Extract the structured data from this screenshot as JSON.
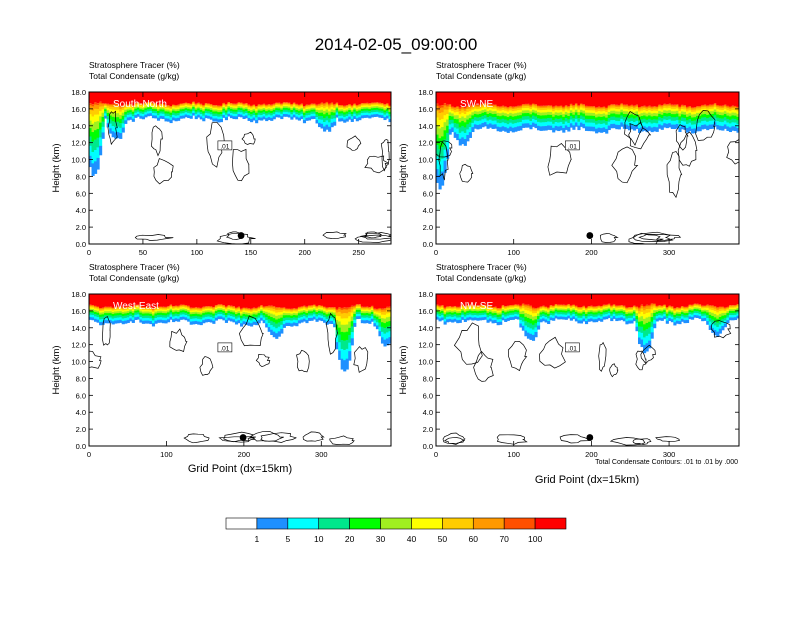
{
  "title": "2014-02-05_09:00:00",
  "panel_header": {
    "line1": "Stratosphere Tracer   (%)",
    "line2": "Total Condensate   (g/kg)"
  },
  "ylabel": "Height (km)",
  "xlabel": "Grid Point (dx=15km)",
  "contour_note": "Total Condensate Contours: .01 to .01 by .000",
  "contour_label": ".01",
  "colorbar": {
    "labels": [
      "1",
      "5",
      "10",
      "20",
      "30",
      "40",
      "50",
      "60",
      "70",
      "100"
    ],
    "colors": [
      "#ffffff",
      "#1e90ff",
      "#00ffff",
      "#00e88c",
      "#00ff00",
      "#a0f020",
      "#ffff00",
      "#ffcc00",
      "#ff9900",
      "#ff5000",
      "#ff0000"
    ]
  },
  "chart_data": [
    {
      "type": "heatmap",
      "name": "South-North",
      "xlim": [
        0,
        280
      ],
      "ylim": [
        0,
        18
      ],
      "xticks": [
        0,
        50,
        100,
        150,
        200,
        250
      ],
      "yticks": [
        "0.0",
        "2.0",
        "4.0",
        "6.0",
        "8.0",
        "10.0",
        "12.0",
        "14.0",
        "16.0",
        "18.0"
      ],
      "tracer_100_base_km": 16.6,
      "tracer_1_base_km": 14.8,
      "intrusions": [
        {
          "x": 5,
          "bottom_km": 8.0
        },
        {
          "x": 25,
          "bottom_km": 12.5
        },
        {
          "x": 220,
          "bottom_km": 13.2
        }
      ],
      "marker_x": 141,
      "marker_y_km": 1.0
    },
    {
      "type": "heatmap",
      "name": "SW-NE",
      "xlim": [
        0,
        390
      ],
      "ylim": [
        0,
        18
      ],
      "xticks": [
        0,
        100,
        200,
        300
      ],
      "yticks": [
        "0.0",
        "2.0",
        "4.0",
        "6.0",
        "8.0",
        "10.0",
        "12.0",
        "14.0",
        "16.0",
        "18.0"
      ],
      "tracer_100_base_km": 16.4,
      "tracer_1_base_km": 13.5,
      "intrusions": [
        {
          "x": 5,
          "bottom_km": 6.5
        },
        {
          "x": 35,
          "bottom_km": 12.0
        },
        {
          "x": 365,
          "bottom_km": 13.5
        }
      ],
      "marker_x": 198,
      "marker_y_km": 1.0
    },
    {
      "type": "heatmap",
      "name": "West-East",
      "xlim": [
        0,
        390
      ],
      "ylim": [
        0,
        18
      ],
      "xticks": [
        0,
        100,
        200,
        300
      ],
      "yticks": [
        "0.0",
        "2.0",
        "4.0",
        "6.0",
        "8.0",
        "10.0",
        "12.0",
        "14.0",
        "16.0",
        "18.0"
      ],
      "tracer_100_base_km": 16.5,
      "tracer_1_base_km": 14.6,
      "intrusions": [
        {
          "x": 240,
          "bottom_km": 12.8
        },
        {
          "x": 330,
          "bottom_km": 9.0
        },
        {
          "x": 385,
          "bottom_km": 12.0
        }
      ],
      "marker_x": 199,
      "marker_y_km": 1.0
    },
    {
      "type": "heatmap",
      "name": "NW-SE",
      "xlim": [
        0,
        390
      ],
      "ylim": [
        0,
        18
      ],
      "xticks": [
        0,
        100,
        200,
        300
      ],
      "yticks": [
        "0.0",
        "2.0",
        "4.0",
        "6.0",
        "8.0",
        "10.0",
        "12.0",
        "14.0",
        "16.0",
        "18.0"
      ],
      "tracer_100_base_km": 16.6,
      "tracer_1_base_km": 14.8,
      "intrusions": [
        {
          "x": 120,
          "bottom_km": 12.5
        },
        {
          "x": 270,
          "bottom_km": 11.0
        },
        {
          "x": 360,
          "bottom_km": 13.2
        }
      ],
      "marker_x": 198,
      "marker_y_km": 1.0
    }
  ]
}
